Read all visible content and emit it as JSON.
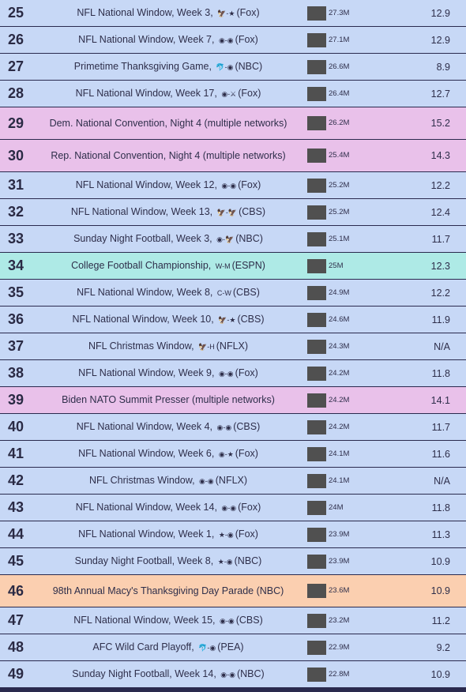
{
  "rows": [
    {
      "rank": "25",
      "pre": "NFL National Window, Week 3,",
      "logos": "🦅-★",
      "post": "(Fox)",
      "viewers": "27.3M",
      "rating": "12.9",
      "type": "nfl",
      "tall": false
    },
    {
      "rank": "26",
      "pre": "NFL National Window, Week 7,",
      "logos": "◉-◉",
      "post": "(Fox)",
      "viewers": "27.1M",
      "rating": "12.9",
      "type": "nfl",
      "tall": false
    },
    {
      "rank": "27",
      "pre": "Primetime Thanksgiving Game,",
      "logos": "🐬-◉",
      "post": "(NBC)",
      "viewers": "26.6M",
      "rating": "8.9",
      "type": "nfl",
      "tall": false
    },
    {
      "rank": "28",
      "pre": "NFL National Window, Week 17,",
      "logos": "◉-⚔",
      "post": "(Fox)",
      "viewers": "26.4M",
      "rating": "12.7",
      "type": "nfl",
      "tall": false
    },
    {
      "rank": "29",
      "pre": "Dem. National Convention, Night 4 (multiple networks)",
      "logos": "",
      "post": "",
      "viewers": "26.2M",
      "rating": "15.2",
      "type": "pol",
      "tall": true
    },
    {
      "rank": "30",
      "pre": "Rep. National Convention, Night 4 (multiple networks)",
      "logos": "",
      "post": "",
      "viewers": "25.4M",
      "rating": "14.3",
      "type": "pol",
      "tall": true
    },
    {
      "rank": "31",
      "pre": "NFL National Window, Week 12,",
      "logos": "◉-◉",
      "post": "(Fox)",
      "viewers": "25.2M",
      "rating": "12.2",
      "type": "nfl",
      "tall": false
    },
    {
      "rank": "32",
      "pre": "NFL National Window, Week 13,",
      "logos": "🦅-🦅",
      "post": "(CBS)",
      "viewers": "25.2M",
      "rating": "12.4",
      "type": "nfl",
      "tall": false
    },
    {
      "rank": "33",
      "pre": "Sunday Night Football, Week 3,",
      "logos": "◉-🦅",
      "post": "(NBC)",
      "viewers": "25.1M",
      "rating": "11.7",
      "type": "nfl",
      "tall": false
    },
    {
      "rank": "34",
      "pre": "College Football Championship,",
      "logos": "W-M",
      "post": "(ESPN)",
      "viewers": "25M",
      "rating": "12.3",
      "type": "col",
      "tall": false
    },
    {
      "rank": "35",
      "pre": "NFL National Window, Week 8,",
      "logos": "C-W",
      "post": "(CBS)",
      "viewers": "24.9M",
      "rating": "12.2",
      "type": "nfl",
      "tall": false
    },
    {
      "rank": "36",
      "pre": "NFL National Window, Week 10,",
      "logos": "🦅-★",
      "post": "(CBS)",
      "viewers": "24.6M",
      "rating": "11.9",
      "type": "nfl",
      "tall": false
    },
    {
      "rank": "37",
      "pre": "NFL Christmas Window,",
      "logos": "🦅-H",
      "post": "(NFLX)",
      "viewers": "24.3M",
      "rating": "N/A",
      "type": "nfl",
      "tall": false
    },
    {
      "rank": "38",
      "pre": "NFL National Window, Week 9,",
      "logos": "◉-◉",
      "post": "(Fox)",
      "viewers": "24.2M",
      "rating": "11.8",
      "type": "nfl",
      "tall": false
    },
    {
      "rank": "39",
      "pre": "Biden NATO Summit Presser (multiple networks)",
      "logos": "",
      "post": "",
      "viewers": "24.2M",
      "rating": "14.1",
      "type": "pol",
      "tall": false
    },
    {
      "rank": "40",
      "pre": "NFL National Window, Week 4,",
      "logos": "◉-◉",
      "post": "(CBS)",
      "viewers": "24.2M",
      "rating": "11.7",
      "type": "nfl",
      "tall": false
    },
    {
      "rank": "41",
      "pre": "NFL National Window, Week 6,",
      "logos": "◉-★",
      "post": "(Fox)",
      "viewers": "24.1M",
      "rating": "11.6",
      "type": "nfl",
      "tall": false
    },
    {
      "rank": "42",
      "pre": "NFL Christmas Window,",
      "logos": "◉-◉",
      "post": "(NFLX)",
      "viewers": "24.1M",
      "rating": "N/A",
      "type": "nfl",
      "tall": false
    },
    {
      "rank": "43",
      "pre": "NFL National Window, Week 14,",
      "logos": "◉-◉",
      "post": "(Fox)",
      "viewers": "24M",
      "rating": "11.8",
      "type": "nfl",
      "tall": false
    },
    {
      "rank": "44",
      "pre": "NFL National Window, Week 1,",
      "logos": "★-◉",
      "post": "(Fox)",
      "viewers": "23.9M",
      "rating": "11.3",
      "type": "nfl",
      "tall": false
    },
    {
      "rank": "45",
      "pre": "Sunday Night Football, Week 8,",
      "logos": "★-◉",
      "post": "(NBC)",
      "viewers": "23.9M",
      "rating": "10.9",
      "type": "nfl",
      "tall": false
    },
    {
      "rank": "46",
      "pre": "98th Annual Macy's Thanksgiving Day Parade (NBC)",
      "logos": "",
      "post": "",
      "viewers": "23.6M",
      "rating": "10.9",
      "type": "parade",
      "tall": true
    },
    {
      "rank": "47",
      "pre": "NFL National Window, Week 15,",
      "logos": "◉-◉",
      "post": "(CBS)",
      "viewers": "23.2M",
      "rating": "11.2",
      "type": "nfl",
      "tall": false
    },
    {
      "rank": "48",
      "pre": "AFC Wild Card Playoff,",
      "logos": "🐬-◉",
      "post": "(PEA)",
      "viewers": "22.9M",
      "rating": "9.2",
      "type": "nfl",
      "tall": false
    },
    {
      "rank": "49",
      "pre": "Sunday Night Football, Week 14,",
      "logos": "◉-◉",
      "post": "(NBC)",
      "viewers": "22.8M",
      "rating": "10.9",
      "type": "nfl",
      "tall": false
    }
  ]
}
